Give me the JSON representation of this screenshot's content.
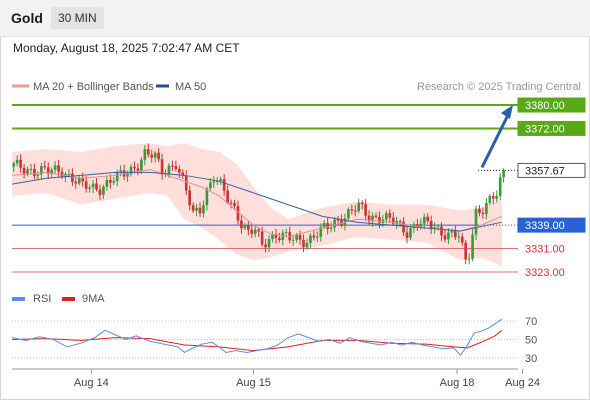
{
  "header": {
    "symbol": "Gold",
    "timeframe": "30 MIN",
    "datetime": "Monday, August 18, 2025 7:02:47 AM CET"
  },
  "legend": {
    "bb_label": "MA 20 + Bollinger Bands",
    "ma50_label": "MA 50",
    "credit": "Research © 2025 Trading Central"
  },
  "rsi_legend": {
    "rsi_label": "RSI",
    "ma_label": "9MA"
  },
  "colors": {
    "up": "#3a9a3a",
    "down": "#cc3333",
    "green_level": "#58a817",
    "blue_level": "#2a62d6",
    "red_level": "#e07070",
    "bb": "#ffd9d6",
    "arrow": "#2d5fa8",
    "rsi": "#5b8ee0",
    "rsi_ma": "#e02020"
  },
  "chart_data": [
    {
      "type": "candlestick",
      "series": [
        {
          "name": "MA 20 + Bollinger Bands"
        },
        {
          "name": "MA 50"
        }
      ],
      "ylim": [
        3320,
        3385
      ],
      "price_levels": [
        {
          "value": 3380.0,
          "label": "3380.00",
          "style": "resistance"
        },
        {
          "value": 3372.0,
          "label": "3372.00",
          "style": "resistance"
        },
        {
          "value": 3357.67,
          "label": "3357.67",
          "style": "last"
        },
        {
          "value": 3339.0,
          "label": "3339.00",
          "style": "pivot"
        },
        {
          "value": 3331.0,
          "label": "3331.00",
          "style": "support"
        },
        {
          "value": 3323.0,
          "label": "3323.00",
          "style": "support"
        }
      ],
      "close_path": [
        [
          0,
          3359
        ],
        [
          5,
          3358
        ],
        [
          10,
          3357
        ],
        [
          14,
          3358
        ],
        [
          20,
          3352
        ],
        [
          25,
          3352
        ],
        [
          30,
          3355
        ],
        [
          36,
          3360
        ],
        [
          38,
          3363
        ],
        [
          41,
          3362
        ],
        [
          43,
          3358
        ],
        [
          47,
          3360
        ],
        [
          50,
          3350
        ],
        [
          52,
          3343
        ],
        [
          54,
          3345
        ],
        [
          56,
          3351
        ],
        [
          58,
          3355
        ],
        [
          60,
          3352
        ],
        [
          62,
          3348
        ],
        [
          64,
          3345
        ],
        [
          66,
          3340
        ],
        [
          68,
          3336
        ],
        [
          70,
          3337
        ],
        [
          72,
          3332
        ],
        [
          74,
          3335
        ],
        [
          76,
          3336
        ],
        [
          80,
          3334
        ],
        [
          85,
          3334
        ],
        [
          88,
          3336
        ],
        [
          91,
          3338
        ],
        [
          94,
          3341
        ],
        [
          97,
          3343
        ],
        [
          100,
          3345
        ],
        [
          103,
          3342
        ],
        [
          106,
          3342
        ],
        [
          110,
          3340
        ],
        [
          114,
          3337
        ],
        [
          117,
          3340
        ],
        [
          120,
          3339
        ],
        [
          124,
          3337
        ],
        [
          127,
          3336
        ],
        [
          129,
          3335
        ],
        [
          131,
          3326
        ],
        [
          132,
          3329
        ],
        [
          134,
          3344
        ],
        [
          136,
          3345
        ],
        [
          138,
          3347
        ],
        [
          140,
          3349
        ],
        [
          142,
          3357.67
        ]
      ],
      "ma20": [
        [
          0,
          3356
        ],
        [
          10,
          3357
        ],
        [
          20,
          3355
        ],
        [
          30,
          3356
        ],
        [
          40,
          3358
        ],
        [
          50,
          3354
        ],
        [
          55,
          3352
        ],
        [
          60,
          3349
        ],
        [
          65,
          3344
        ],
        [
          70,
          3339
        ],
        [
          75,
          3336
        ],
        [
          80,
          3335
        ],
        [
          90,
          3338
        ],
        [
          100,
          3341
        ],
        [
          110,
          3340
        ],
        [
          120,
          3338
        ],
        [
          130,
          3337
        ],
        [
          136,
          3339
        ],
        [
          142,
          3342
        ]
      ],
      "ma50": [
        [
          0,
          3353
        ],
        [
          10,
          3355
        ],
        [
          20,
          3356
        ],
        [
          30,
          3357
        ],
        [
          40,
          3357
        ],
        [
          50,
          3356
        ],
        [
          60,
          3354
        ],
        [
          70,
          3350
        ],
        [
          80,
          3346
        ],
        [
          90,
          3342
        ],
        [
          100,
          3340
        ],
        [
          110,
          3339
        ],
        [
          120,
          3338
        ],
        [
          130,
          3337
        ],
        [
          142,
          3340
        ]
      ],
      "bb_band": [
        [
          0,
          3364,
          3349
        ],
        [
          10,
          3365,
          3350
        ],
        [
          20,
          3364,
          3346
        ],
        [
          30,
          3366,
          3348
        ],
        [
          40,
          3367,
          3350
        ],
        [
          45,
          3366,
          3349
        ],
        [
          50,
          3367,
          3341
        ],
        [
          55,
          3365,
          3338
        ],
        [
          60,
          3364,
          3334
        ],
        [
          65,
          3360,
          3329
        ],
        [
          70,
          3352,
          3327
        ],
        [
          75,
          3345,
          3328
        ],
        [
          80,
          3341,
          3330
        ],
        [
          90,
          3345,
          3332
        ],
        [
          100,
          3347,
          3335
        ],
        [
          110,
          3346,
          3334
        ],
        [
          120,
          3346,
          3333
        ],
        [
          130,
          3344,
          3327
        ],
        [
          136,
          3345,
          3328
        ],
        [
          142,
          3348,
          3325
        ]
      ],
      "forecast": {
        "from": 3357.67,
        "to": 3380.0
      },
      "x_ticks": [
        {
          "label": "Aug 14",
          "pos": 23
        },
        {
          "label": "Aug 15",
          "pos": 70
        },
        {
          "label": "Aug 18",
          "pos": 129
        },
        {
          "label": "Aug 24",
          "pos": 148
        }
      ]
    },
    {
      "type": "line",
      "series": [
        {
          "name": "RSI"
        },
        {
          "name": "9MA"
        }
      ],
      "ylim": [
        20,
        80
      ],
      "y_ticks": [
        70,
        50,
        30
      ],
      "rsi": [
        [
          0,
          52
        ],
        [
          4,
          49
        ],
        [
          8,
          53
        ],
        [
          12,
          50
        ],
        [
          16,
          42
        ],
        [
          20,
          46
        ],
        [
          24,
          52
        ],
        [
          27,
          60
        ],
        [
          30,
          55
        ],
        [
          33,
          50
        ],
        [
          36,
          54
        ],
        [
          40,
          48
        ],
        [
          44,
          45
        ],
        [
          48,
          42
        ],
        [
          50,
          36
        ],
        [
          52,
          40
        ],
        [
          55,
          45
        ],
        [
          58,
          47
        ],
        [
          60,
          42
        ],
        [
          62,
          36
        ],
        [
          65,
          38
        ],
        [
          68,
          36
        ],
        [
          71,
          38
        ],
        [
          74,
          40
        ],
        [
          77,
          44
        ],
        [
          80,
          52
        ],
        [
          83,
          56
        ],
        [
          86,
          52
        ],
        [
          89,
          48
        ],
        [
          92,
          50
        ],
        [
          95,
          46
        ],
        [
          98,
          52
        ],
        [
          101,
          48
        ],
        [
          104,
          46
        ],
        [
          107,
          44
        ],
        [
          110,
          47
        ],
        [
          113,
          44
        ],
        [
          116,
          47
        ],
        [
          119,
          44
        ],
        [
          122,
          42
        ],
        [
          125,
          40
        ],
        [
          128,
          41
        ],
        [
          130,
          33
        ],
        [
          132,
          44
        ],
        [
          134,
          57
        ],
        [
          136,
          59
        ],
        [
          138,
          62
        ],
        [
          140,
          67
        ],
        [
          142,
          72
        ]
      ],
      "rsi_ma": [
        [
          0,
          50
        ],
        [
          10,
          51
        ],
        [
          20,
          49
        ],
        [
          30,
          52
        ],
        [
          40,
          51
        ],
        [
          50,
          44
        ],
        [
          60,
          42
        ],
        [
          70,
          38
        ],
        [
          80,
          42
        ],
        [
          90,
          49
        ],
        [
          100,
          49
        ],
        [
          110,
          46
        ],
        [
          120,
          45
        ],
        [
          128,
          42
        ],
        [
          132,
          41
        ],
        [
          136,
          47
        ],
        [
          140,
          54
        ],
        [
          142,
          60
        ]
      ]
    }
  ]
}
